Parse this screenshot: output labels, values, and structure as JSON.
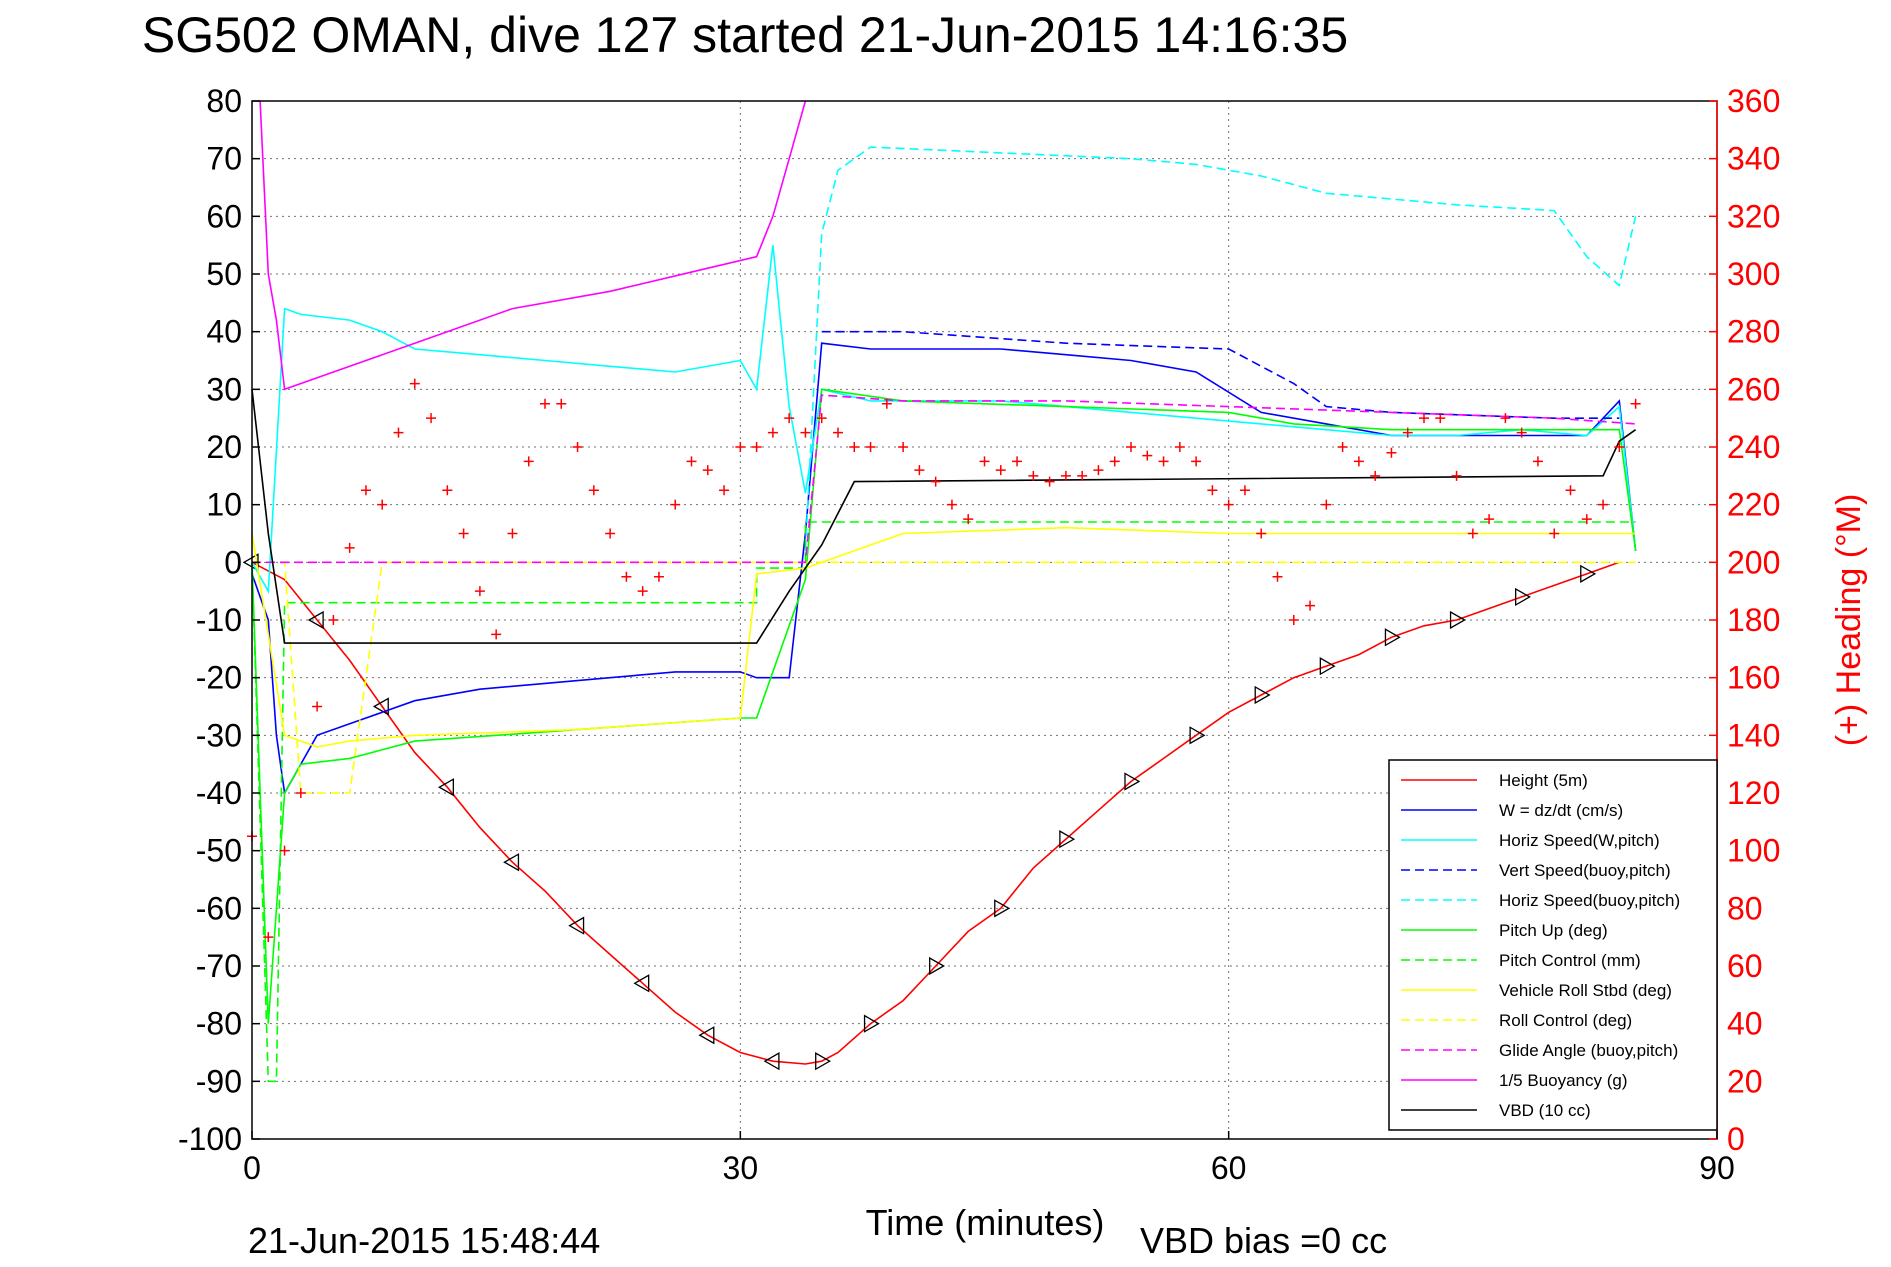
{
  "chart_data": {
    "type": "line",
    "title": "SG502 OMAN, dive 127 started 21-Jun-2015 14:16:35",
    "xlabel": "Time (minutes)",
    "ylabel": "",
    "ylabel_right": "(+) Heading (°M)",
    "footer_left": "21-Jun-2015 15:48:44",
    "footer_right": "VBD bias =0 cc",
    "xlim": [
      0,
      90
    ],
    "ylim": [
      -100,
      80
    ],
    "ylim_right": [
      0,
      360
    ],
    "xticks": [
      "0",
      "30",
      "60",
      "90"
    ],
    "yticks": [
      "80",
      "70",
      "60",
      "50",
      "40",
      "30",
      "20",
      "10",
      "0",
      "-10",
      "-20",
      "-30",
      "-40",
      "-50",
      "-60",
      "-70",
      "-80",
      "-90",
      "-100"
    ],
    "yticks_right": [
      "360",
      "340",
      "320",
      "300",
      "280",
      "260",
      "240",
      "220",
      "200",
      "180",
      "160",
      "140",
      "120",
      "100",
      "80",
      "60",
      "40",
      "20",
      "0"
    ],
    "grid": true,
    "legend_position": "bottom-right",
    "colors": {
      "red": "#ff0000",
      "blue": "#0000ff",
      "cyan": "#00ffff",
      "green": "#00ff00",
      "yellow": "#ffff00",
      "magenta": "#ff00ff",
      "black": "#000000"
    },
    "series": [
      {
        "name": "Height (5m)",
        "color": "#ff0000",
        "style": "solid",
        "markers": "triangles",
        "x": [
          0,
          2,
          4,
          6,
          8,
          10,
          12,
          14,
          16,
          18,
          20,
          22,
          24,
          26,
          28,
          30,
          32,
          34,
          35,
          36,
          38,
          40,
          42,
          44,
          46,
          48,
          50,
          52,
          54,
          56,
          58,
          60,
          62,
          64,
          66,
          68,
          70,
          72,
          74,
          76,
          78,
          80,
          82,
          84
        ],
        "y": [
          0,
          -3,
          -10,
          -17,
          -25,
          -33,
          -39,
          -46,
          -52,
          -57,
          -63,
          -68,
          -73,
          -78,
          -82,
          -85,
          -86.5,
          -87,
          -86.5,
          -85,
          -80,
          -76,
          -70,
          -64,
          -60,
          -53,
          -48,
          -43,
          -38,
          -34,
          -30,
          -26,
          -23,
          -20,
          -18,
          -16,
          -13,
          -11,
          -10,
          -8,
          -6,
          -4,
          -2,
          0
        ]
      },
      {
        "name": "W = dz/dt (cm/s)",
        "color": "#0000ff",
        "style": "solid",
        "x": [
          0,
          1,
          1.5,
          2,
          3,
          4,
          6,
          8,
          10,
          14,
          18,
          22,
          26,
          30,
          31,
          33,
          34,
          35,
          38,
          42,
          46,
          50,
          54,
          58,
          62,
          66,
          70,
          74,
          78,
          82,
          84,
          85
        ],
        "y": [
          -2,
          -10,
          -30,
          -40,
          -35,
          -30,
          -28,
          -26,
          -24,
          -22,
          -21,
          -20,
          -19,
          -19,
          -20,
          -20,
          5,
          38,
          37,
          37,
          37,
          36,
          35,
          33,
          26,
          24,
          22,
          22,
          22,
          22,
          28,
          2
        ]
      },
      {
        "name": "Horiz Speed(W,pitch)",
        "color": "#00ffff",
        "style": "solid",
        "x": [
          0,
          1,
          2,
          3,
          6,
          8,
          10,
          14,
          18,
          22,
          26,
          30,
          31,
          32,
          33,
          34,
          35,
          38,
          42,
          46,
          50,
          54,
          58,
          62,
          66,
          70,
          74,
          78,
          82,
          84,
          85
        ],
        "y": [
          0,
          -5,
          44,
          43,
          42,
          40,
          37,
          36,
          35,
          34,
          33,
          35,
          30,
          55,
          27,
          12,
          30,
          28,
          28,
          28,
          27,
          26,
          25,
          24,
          23,
          22,
          22,
          23,
          22,
          27,
          2
        ]
      },
      {
        "name": "Vert Speed(buoy,pitch)",
        "color": "#0000ff",
        "style": "dashed",
        "x": [
          35,
          40,
          50,
          60,
          64,
          66,
          70,
          80,
          84
        ],
        "y": [
          40,
          40,
          38,
          37,
          31,
          27,
          26,
          25,
          25
        ]
      },
      {
        "name": "Horiz Speed(buoy,pitch)",
        "color": "#00ffff",
        "style": "dashed",
        "x": [
          34,
          35,
          36,
          38,
          46,
          54,
          58,
          62,
          66,
          70,
          74,
          80,
          82,
          84,
          85
        ],
        "y": [
          2,
          57,
          68,
          72,
          71,
          70,
          69,
          67,
          64,
          63,
          62,
          61,
          53,
          48,
          60
        ]
      },
      {
        "name": "Pitch Up (deg)",
        "color": "#00ff00",
        "style": "solid",
        "x": [
          0,
          1,
          2,
          3,
          6,
          10,
          20,
          30,
          31,
          34,
          35,
          40,
          50,
          60,
          64,
          70,
          80,
          84,
          85
        ],
        "y": [
          0,
          -80,
          -40,
          -35,
          -34,
          -31,
          -29,
          -27,
          -27,
          -3,
          30,
          28,
          27,
          26,
          24,
          23,
          23,
          23,
          2
        ]
      },
      {
        "name": "Pitch Control (mm)",
        "color": "#00ff00",
        "style": "dashed",
        "x": [
          0,
          1,
          1.5,
          2,
          31,
          31,
          34,
          34,
          85
        ],
        "y": [
          0,
          -90,
          -90,
          -7,
          -7,
          -1,
          -1,
          7,
          7
        ]
      },
      {
        "name": "Vehicle Roll Stbd (deg)",
        "color": "#ffff00",
        "style": "solid",
        "x": [
          0,
          2,
          4,
          6,
          10,
          20,
          30,
          31,
          34,
          40,
          50,
          60,
          70,
          80,
          85
        ],
        "y": [
          5,
          -30,
          -32,
          -31,
          -30,
          -29,
          -27,
          -2,
          -1,
          5,
          6,
          5,
          5,
          5,
          5
        ]
      },
      {
        "name": "Roll Control (deg)",
        "color": "#ffff00",
        "style": "dashed",
        "x": [
          0,
          2,
          3,
          6,
          8,
          30,
          31,
          35,
          85
        ],
        "y": [
          0,
          0,
          -40,
          -40,
          0,
          0,
          0,
          0,
          0
        ]
      },
      {
        "name": "Glide Angle (buoy,pitch)",
        "color": "#ff00ff",
        "style": "dashed",
        "x": [
          0,
          34,
          35,
          40,
          50,
          60,
          70,
          80,
          85
        ],
        "y": [
          0,
          0,
          29,
          28,
          28,
          27,
          26,
          25,
          24
        ]
      },
      {
        "name": "1/5 Buoyancy (g)",
        "color": "#ff00ff",
        "style": "solid",
        "x": [
          0.5,
          1,
          1.5,
          2,
          4,
          6,
          10,
          16,
          22,
          28,
          31,
          32,
          33,
          34
        ],
        "y": [
          80,
          50,
          42,
          30,
          32,
          34,
          38,
          44,
          47,
          51,
          53,
          60,
          70,
          80
        ]
      },
      {
        "name": "VBD (10 cc)",
        "color": "#000000",
        "style": "solid",
        "x": [
          0,
          1,
          2,
          31,
          33,
          35,
          37,
          83,
          84,
          85
        ],
        "y": [
          30,
          5,
          -14,
          -14,
          -5,
          3,
          14,
          15,
          21,
          23
        ]
      },
      {
        "name": "Heading",
        "color": "#ff0000",
        "style": "plus-markers",
        "axis": "right",
        "x": [
          0,
          1,
          2,
          3,
          4,
          5,
          6,
          7,
          8,
          9,
          10,
          11,
          12,
          13,
          14,
          15,
          16,
          17,
          18,
          19,
          20,
          21,
          22,
          23,
          24,
          25,
          26,
          27,
          28,
          29,
          30,
          31,
          32,
          33,
          34,
          35,
          36,
          37,
          38,
          39,
          40,
          41,
          42,
          43,
          44,
          45,
          46,
          47,
          48,
          49,
          50,
          51,
          52,
          53,
          54,
          55,
          56,
          57,
          58,
          59,
          60,
          61,
          62,
          63,
          64,
          65,
          66,
          67,
          68,
          69,
          70,
          71,
          72,
          73,
          74,
          75,
          76,
          77,
          78,
          79,
          80,
          81,
          82,
          83,
          84,
          85
        ],
        "y": [
          105,
          70,
          100,
          120,
          150,
          180,
          205,
          225,
          220,
          245,
          262,
          250,
          225,
          210,
          190,
          175,
          210,
          235,
          255,
          255,
          240,
          225,
          210,
          195,
          190,
          195,
          220,
          235,
          232,
          225,
          240,
          240,
          245,
          250,
          245,
          250,
          245,
          240,
          240,
          255,
          240,
          232,
          228,
          220,
          215,
          235,
          232,
          235,
          230,
          228,
          230,
          230,
          232,
          235,
          240,
          237,
          235,
          240,
          235,
          225,
          220,
          225,
          210,
          195,
          180,
          185,
          220,
          240,
          235,
          230,
          238,
          245,
          250,
          250,
          230,
          210,
          215,
          250,
          245,
          235,
          210,
          225,
          215,
          220,
          240,
          255
        ]
      }
    ]
  }
}
